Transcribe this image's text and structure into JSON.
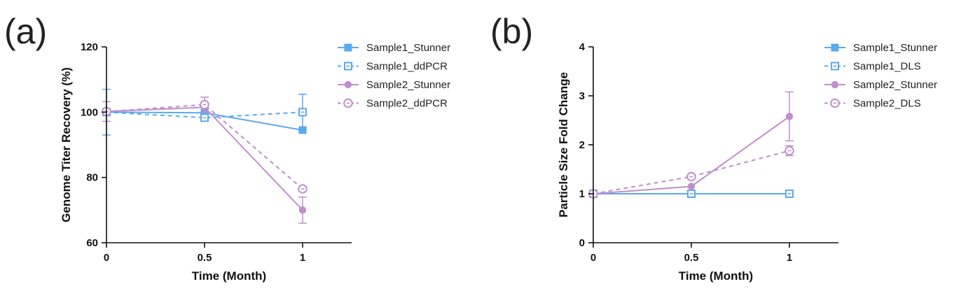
{
  "colors": {
    "blue": "#5BA9EE",
    "purple": "#C08FCB"
  },
  "chart_data": [
    {
      "type": "line",
      "panel_label": "(a)",
      "xlabel": "Time (Month)",
      "ylabel": "Genome Titer Recovery (%)",
      "x": [
        0,
        0.5,
        1
      ],
      "x_ticks": [
        "0",
        "0.5",
        "1"
      ],
      "xlim": [
        0,
        1.25
      ],
      "ylim": [
        60,
        120
      ],
      "y_ticks": [
        "60",
        "80",
        "100",
        "120"
      ],
      "grid": false,
      "legend_position": "right",
      "series": [
        {
          "name": "Sample1_Stunner",
          "values": [
            100,
            99.8,
            94.5
          ],
          "errors": [
            0,
            0,
            0
          ],
          "color": "blue",
          "marker": "square-filled",
          "line": "solid"
        },
        {
          "name": "Sample1_ddPCR",
          "values": [
            100,
            98.3,
            100
          ],
          "errors": [
            7,
            0,
            5.5
          ],
          "color": "blue",
          "marker": "square-open",
          "line": "dashed"
        },
        {
          "name": "Sample2_Stunner",
          "values": [
            100.2,
            101.5,
            70
          ],
          "errors": [
            0,
            0,
            4
          ],
          "color": "purple",
          "marker": "circle-filled",
          "line": "solid"
        },
        {
          "name": "Sample2_ddPCR",
          "values": [
            100.2,
            102.3,
            76.5
          ],
          "errors": [
            3,
            2.3,
            0
          ],
          "color": "purple",
          "marker": "circle-open",
          "line": "dashed"
        }
      ]
    },
    {
      "type": "line",
      "panel_label": "(b)",
      "xlabel": "Time (Month)",
      "ylabel": "Particle Size Fold Change",
      "x": [
        0,
        0.5,
        1
      ],
      "x_ticks": [
        "0",
        "0.5",
        "1"
      ],
      "xlim": [
        0,
        1.25
      ],
      "ylim": [
        0,
        4
      ],
      "y_ticks": [
        "0",
        "1",
        "2",
        "3",
        "4"
      ],
      "grid": false,
      "legend_position": "right",
      "series": [
        {
          "name": "Sample1_Stunner",
          "values": [
            1.0,
            1.0,
            1.0
          ],
          "errors": [
            0,
            0,
            0
          ],
          "color": "blue",
          "marker": "square-filled",
          "line": "solid"
        },
        {
          "name": "Sample1_DLS",
          "values": [
            1.0,
            1.0,
            1.0
          ],
          "errors": [
            0,
            0,
            0
          ],
          "color": "blue",
          "marker": "square-open",
          "line": "dashed"
        },
        {
          "name": "Sample2_Stunner",
          "values": [
            1.0,
            1.15,
            2.58
          ],
          "errors": [
            0,
            0,
            0.5
          ],
          "color": "purple",
          "marker": "circle-filled",
          "line": "solid"
        },
        {
          "name": "Sample2_DLS",
          "values": [
            1.0,
            1.35,
            1.88
          ],
          "errors": [
            0,
            0,
            0.1
          ],
          "color": "purple",
          "marker": "circle-open",
          "line": "dashed"
        }
      ]
    }
  ]
}
